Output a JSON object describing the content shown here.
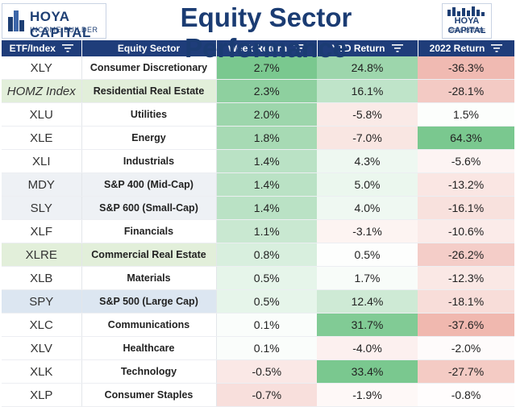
{
  "header": {
    "logo_left_line1": "HOYA CAPITAL",
    "logo_left_line2": "INCOME BUILDER",
    "title": "Equity Sector Performance",
    "logo_right_line1": "HOYA CAPITAL",
    "logo_right_line2": "REAL ESTATE"
  },
  "colors": {
    "header_bg": "#1f3d7a",
    "title": "#1b3c73",
    "positive": "#63be7b",
    "negative": "#e0705f",
    "neutral": "#ffffff",
    "highlight_blue": "#dce6f1",
    "highlight_green": "#e2efda"
  },
  "chart_data": {
    "type": "table",
    "title": "Equity Sector Performance",
    "columns": [
      "ETF/Index",
      "Equity Sector",
      "Week Return",
      "YTD Return",
      "2022 Return"
    ],
    "rows": [
      {
        "etf": "XLY",
        "sector": "Consumer Discretionary",
        "week": "2.7%",
        "ytd": "24.8%",
        "y2022": "-36.3%",
        "week_v": 2.7,
        "ytd_v": 24.8,
        "y2022_v": -36.3,
        "hl": ""
      },
      {
        "etf": "HOMZ Index",
        "sector": "Residential Real Estate",
        "week": "2.3%",
        "ytd": "16.1%",
        "y2022": "-28.1%",
        "week_v": 2.3,
        "ytd_v": 16.1,
        "y2022_v": -28.1,
        "hl": "green",
        "italic": true
      },
      {
        "etf": "XLU",
        "sector": "Utilities",
        "week": "2.0%",
        "ytd": "-5.8%",
        "y2022": "1.5%",
        "week_v": 2.0,
        "ytd_v": -5.8,
        "y2022_v": 1.5,
        "hl": ""
      },
      {
        "etf": "XLE",
        "sector": "Energy",
        "week": "1.8%",
        "ytd": "-7.0%",
        "y2022": "64.3%",
        "week_v": 1.8,
        "ytd_v": -7.0,
        "y2022_v": 64.3,
        "hl": ""
      },
      {
        "etf": "XLI",
        "sector": "Industrials",
        "week": "1.4%",
        "ytd": "4.3%",
        "y2022": "-5.6%",
        "week_v": 1.4,
        "ytd_v": 4.3,
        "y2022_v": -5.6,
        "hl": ""
      },
      {
        "etf": "MDY",
        "sector": "S&P 400 (Mid-Cap)",
        "week": "1.4%",
        "ytd": "5.0%",
        "y2022": "-13.2%",
        "week_v": 1.4,
        "ytd_v": 5.0,
        "y2022_v": -13.2,
        "hl": "grey"
      },
      {
        "etf": "SLY",
        "sector": "S&P 600 (Small-Cap)",
        "week": "1.4%",
        "ytd": "4.0%",
        "y2022": "-16.1%",
        "week_v": 1.4,
        "ytd_v": 4.0,
        "y2022_v": -16.1,
        "hl": "grey"
      },
      {
        "etf": "XLF",
        "sector": "Financials",
        "week": "1.1%",
        "ytd": "-3.1%",
        "y2022": "-10.6%",
        "week_v": 1.1,
        "ytd_v": -3.1,
        "y2022_v": -10.6,
        "hl": ""
      },
      {
        "etf": "XLRE",
        "sector": "Commercial Real Estate",
        "week": "0.8%",
        "ytd": "0.5%",
        "y2022": "-26.2%",
        "week_v": 0.8,
        "ytd_v": 0.5,
        "y2022_v": -26.2,
        "hl": "green"
      },
      {
        "etf": "XLB",
        "sector": "Materials",
        "week": "0.5%",
        "ytd": "1.7%",
        "y2022": "-12.3%",
        "week_v": 0.5,
        "ytd_v": 1.7,
        "y2022_v": -12.3,
        "hl": ""
      },
      {
        "etf": "SPY",
        "sector": "S&P 500 (Large Cap)",
        "week": "0.5%",
        "ytd": "12.4%",
        "y2022": "-18.1%",
        "week_v": 0.5,
        "ytd_v": 12.4,
        "y2022_v": -18.1,
        "hl": "blue"
      },
      {
        "etf": "XLC",
        "sector": "Communications",
        "week": "0.1%",
        "ytd": "31.7%",
        "y2022": "-37.6%",
        "week_v": 0.1,
        "ytd_v": 31.7,
        "y2022_v": -37.6,
        "hl": ""
      },
      {
        "etf": "XLV",
        "sector": "Healthcare",
        "week": "0.1%",
        "ytd": "-4.0%",
        "y2022": "-2.0%",
        "week_v": 0.1,
        "ytd_v": -4.0,
        "y2022_v": -2.0,
        "hl": ""
      },
      {
        "etf": "XLK",
        "sector": "Technology",
        "week": "-0.5%",
        "ytd": "33.4%",
        "y2022": "-27.7%",
        "week_v": -0.5,
        "ytd_v": 33.4,
        "y2022_v": -27.7,
        "hl": ""
      },
      {
        "etf": "XLP",
        "sector": "Consumer Staples",
        "week": "-0.7%",
        "ytd": "-1.9%",
        "y2022": "-0.8%",
        "week_v": -0.7,
        "ytd_v": -1.9,
        "y2022_v": -0.8,
        "hl": ""
      }
    ]
  }
}
